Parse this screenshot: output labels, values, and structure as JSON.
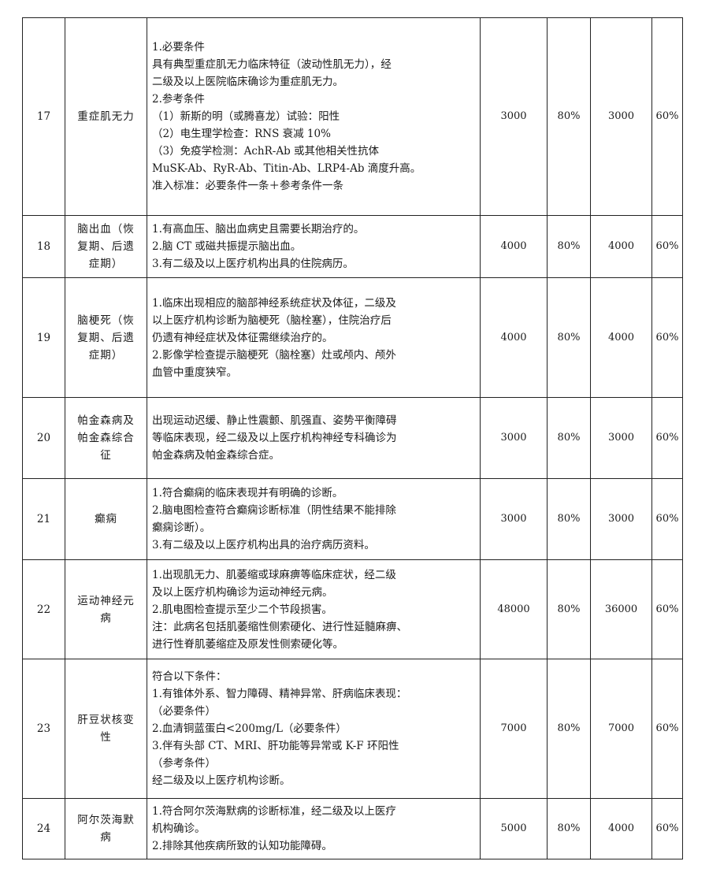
{
  "rows": [
    {
      "no": "17",
      "name_lines": [
        "重症肌无力"
      ],
      "criteria": [
        "1.必要条件",
        "具有典型重症肌无力临床特征（波动性肌无力），经",
        "二级及以上医院临床确诊为重症肌无力。",
        "2.参考条件",
        "（1）新斯的明（或腾喜龙）试验：阳性",
        "（2）电生理学检查：RNS 衰减 10%",
        "（3）免疫学检测：AchR-Ab 或其他相关性抗体",
        "MuSK-Ab、RyR-Ab、Titin-Ab、LRP4-Ab 滴度升高。",
        "准入标准：必要条件一条＋参考条件一条"
      ],
      "amount": "3000",
      "ratio": "80%",
      "amount2": "3000",
      "ratio2": "60%"
    },
    {
      "no": "18",
      "name_lines": [
        "脑出血（恢",
        "复期、后遗",
        "症期）"
      ],
      "criteria": [
        "1.有高血压、脑出血病史且需要长期治疗的。",
        "2.脑 CT 或磁共振提示脑出血。",
        "3.有二级及以上医疗机构出具的住院病历。"
      ],
      "amount": "4000",
      "ratio": "80%",
      "amount2": "4000",
      "ratio2": "60%"
    },
    {
      "no": "19",
      "name_lines": [
        "脑梗死（恢",
        "复期、后遗",
        "症期）"
      ],
      "criteria": [
        "1.临床出现相应的脑部神经系统症状及体征，二级及",
        "以上医疗机构诊断为脑梗死（脑栓塞），住院治疗后",
        "仍遗有神经症状及体征需继续治疗的。",
        "2.影像学检查提示脑梗死（脑栓塞）灶或颅内、颅外",
        "血管中重度狭窄。"
      ],
      "amount": "4000",
      "ratio": "80%",
      "amount2": "4000",
      "ratio2": "60%"
    },
    {
      "no": "20",
      "name_lines": [
        "帕金森病及",
        "帕金森综合",
        "征"
      ],
      "criteria": [
        "出现运动迟缓、静止性震颤、肌强直、姿势平衡障碍",
        "等临床表现，经二级及以上医疗机构神经专科确诊为",
        "帕金森病及帕金森综合症。"
      ],
      "amount": "3000",
      "ratio": "80%",
      "amount2": "3000",
      "ratio2": "60%"
    },
    {
      "no": "21",
      "name_lines": [
        "癫痫"
      ],
      "criteria": [
        "1.符合癫痫的临床表现并有明确的诊断。",
        "2.脑电图检查符合癫痫诊断标准（阴性结果不能排除",
        "癫痫诊断）。",
        "3.有二级及以上医疗机构出具的治疗病历资料。"
      ],
      "amount": "3000",
      "ratio": "80%",
      "amount2": "3000",
      "ratio2": "60%"
    },
    {
      "no": "22",
      "name_lines": [
        "运动神经元",
        "病"
      ],
      "criteria": [
        "1.出现肌无力、肌萎缩或球麻痹等临床症状，经二级",
        "及以上医疗机构确诊为运动神经元病。",
        "2.肌电图检查提示至少二个节段损害。",
        "注：此病名包括肌萎缩性侧索硬化、进行性延髓麻痹、",
        "进行性脊肌萎缩症及原发性侧索硬化等。"
      ],
      "amount": "48000",
      "ratio": "80%",
      "amount2": "36000",
      "ratio2": "60%"
    },
    {
      "no": "23",
      "name_lines": [
        "肝豆状核变",
        "性"
      ],
      "criteria": [
        "符合以下条件：",
        "1.有锥体外系、智力障碍、精神异常、肝病临床表现：",
        "（必要条件）",
        "2.血清铜蓝蛋白<200mg/L（必要条件）",
        "3.伴有头部 CT、MRI、肝功能等异常或 K-F 环阳性",
        "（参考条件）",
        "经二级及以上医疗机构诊断。"
      ],
      "amount": "7000",
      "ratio": "80%",
      "amount2": "7000",
      "ratio2": "60%"
    },
    {
      "no": "24",
      "name_lines": [
        "阿尔茨海默",
        "病"
      ],
      "criteria": [
        "1.符合阿尔茨海默病的诊断标准，经二级及以上医疗",
        "机构确诊。",
        "2.排除其他疾病所致的认知功能障碍。"
      ],
      "amount": "5000",
      "ratio": "80%",
      "amount2": "4000",
      "ratio2": "60%"
    }
  ]
}
